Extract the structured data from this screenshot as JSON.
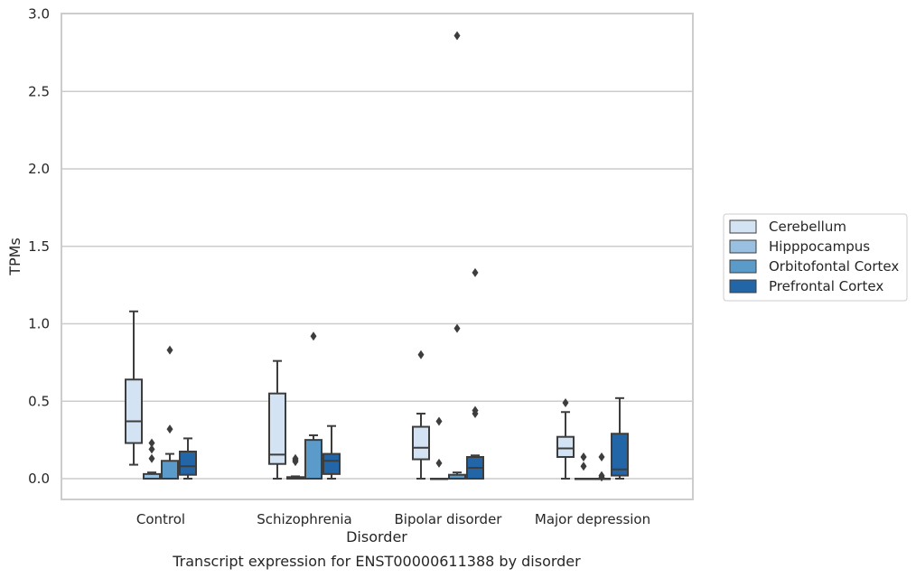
{
  "chart_data": {
    "type": "box",
    "title": "",
    "caption": "Transcript expression for ENST00000611388 by disorder",
    "xlabel": "Disorder",
    "ylabel": "TPMs",
    "ylim": [
      -0.13,
      3.0
    ],
    "yticks": [
      0.0,
      0.5,
      1.0,
      1.5,
      2.0,
      2.5,
      3.0
    ],
    "ytick_labels": [
      "0.0",
      "0.5",
      "1.0",
      "1.5",
      "2.0",
      "2.5",
      "3.0"
    ],
    "grid": "horizontal",
    "legend_position": "right",
    "categories": [
      "Control",
      "Schizophrenia",
      "Bipolar disorder",
      "Major depression"
    ],
    "series": [
      {
        "name": "Cerebellum",
        "color": "#d4e3f3",
        "boxes": [
          {
            "q1": 0.23,
            "median": 0.37,
            "q3": 0.64,
            "whislo": 0.09,
            "whishi": 1.08,
            "fliers": []
          },
          {
            "q1": 0.095,
            "median": 0.155,
            "q3": 0.55,
            "whislo": 0.0,
            "whishi": 0.76,
            "fliers": []
          },
          {
            "q1": 0.125,
            "median": 0.2,
            "q3": 0.335,
            "whislo": 0.0,
            "whishi": 0.42,
            "fliers": [
              0.8
            ]
          },
          {
            "q1": 0.14,
            "median": 0.195,
            "q3": 0.27,
            "whislo": 0.0,
            "whishi": 0.43,
            "fliers": [
              0.49
            ]
          }
        ]
      },
      {
        "name": "Hipppocampus",
        "color": "#99c0e0",
        "boxes": [
          {
            "q1": 0.0,
            "median": 0.0,
            "q3": 0.03,
            "whislo": 0.0,
            "whishi": 0.04,
            "fliers": [
              0.13,
              0.19,
              0.23
            ]
          },
          {
            "q1": 0.0,
            "median": 0.005,
            "q3": 0.01,
            "whislo": 0.0,
            "whishi": 0.015,
            "fliers": [
              0.11,
              0.12,
              0.13
            ]
          },
          {
            "q1": 0.0,
            "median": 0.0,
            "q3": 0.0,
            "whislo": 0.0,
            "whishi": 0.0,
            "fliers": [
              0.1,
              0.37
            ]
          },
          {
            "q1": 0.0,
            "median": 0.0,
            "q3": 0.0,
            "whislo": 0.0,
            "whishi": 0.0,
            "fliers": [
              0.08,
              0.14
            ]
          }
        ]
      },
      {
        "name": "Orbitofontal Cortex",
        "color": "#5b9bc9",
        "boxes": [
          {
            "q1": 0.0,
            "median": 0.0,
            "q3": 0.115,
            "whislo": 0.0,
            "whishi": 0.16,
            "fliers": [
              0.32,
              0.83
            ]
          },
          {
            "q1": 0.0,
            "median": 0.0,
            "q3": 0.25,
            "whislo": 0.0,
            "whishi": 0.28,
            "fliers": [
              0.92
            ]
          },
          {
            "q1": 0.0,
            "median": 0.0,
            "q3": 0.025,
            "whislo": 0.0,
            "whishi": 0.04,
            "fliers": [
              0.97,
              2.86
            ]
          },
          {
            "q1": 0.0,
            "median": 0.0,
            "q3": 0.0,
            "whislo": 0.0,
            "whishi": 0.0,
            "fliers": [
              0.01,
              0.02,
              0.14
            ]
          }
        ]
      },
      {
        "name": "Prefrontal Cortex",
        "color": "#2366a8",
        "boxes": [
          {
            "q1": 0.025,
            "median": 0.08,
            "q3": 0.175,
            "whislo": 0.0,
            "whishi": 0.26,
            "fliers": []
          },
          {
            "q1": 0.03,
            "median": 0.115,
            "q3": 0.16,
            "whislo": 0.0,
            "whishi": 0.34,
            "fliers": []
          },
          {
            "q1": 0.0,
            "median": 0.07,
            "q3": 0.14,
            "whislo": 0.0,
            "whishi": 0.15,
            "fliers": [
              0.42,
              0.44,
              1.33
            ]
          },
          {
            "q1": 0.02,
            "median": 0.06,
            "q3": 0.29,
            "whislo": 0.0,
            "whishi": 0.52,
            "fliers": []
          }
        ]
      }
    ]
  }
}
